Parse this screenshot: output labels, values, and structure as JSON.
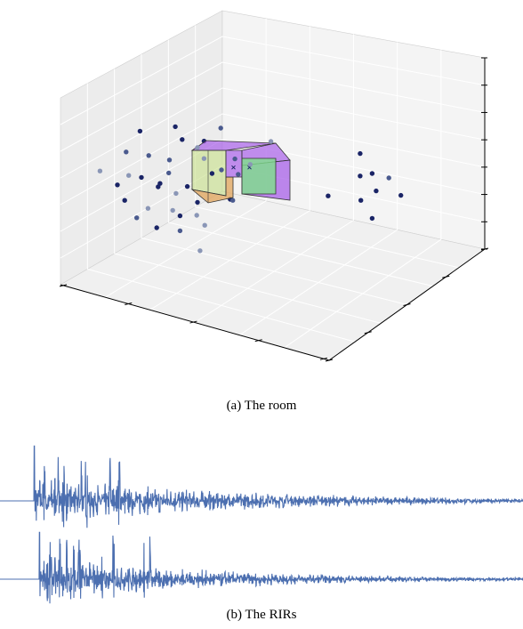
{
  "figure_a": {
    "caption": "(a) The room"
  },
  "figure_b": {
    "caption": "(b) The RIRs"
  },
  "colors": {
    "point_dark": "#1a2466",
    "point_mid": "#4a5a8e",
    "point_light": "#8a96b6",
    "rir_line": "#4c6fb0",
    "room_yellow": "#c8e08a",
    "room_orange": "#e2a45a",
    "room_purple": "#a860e8",
    "room_green": "#7ee08a"
  },
  "chart_data": [
    {
      "type": "scatter",
      "title": "",
      "description_kind": "3d-room-with-image-sources",
      "grid": true,
      "tick_labels": [],
      "points": [
        {
          "x": -2.6,
          "y": 0.3,
          "z": 1.6,
          "shade": "dark"
        },
        {
          "x": -1.7,
          "y": 0.2,
          "z": 1.8,
          "shade": "dark"
        },
        {
          "x": -0.6,
          "y": 0.4,
          "z": 1.7,
          "shade": "mid"
        },
        {
          "x": -1.6,
          "y": 0.6,
          "z": 1.2,
          "shade": "dark"
        },
        {
          "x": -1.2,
          "y": 0.5,
          "z": 0.9,
          "shade": "light"
        },
        {
          "x": 0.6,
          "y": 0.7,
          "z": 1.1,
          "shade": "light"
        },
        {
          "x": -3.0,
          "y": 0.6,
          "z": 0.7,
          "shade": "mid"
        },
        {
          "x": -2.4,
          "y": 0.4,
          "z": 0.6,
          "shade": "mid"
        },
        {
          "x": -1.9,
          "y": 0.5,
          "z": 0.4,
          "shade": "mid"
        },
        {
          "x": -0.3,
          "y": 0.7,
          "z": 0.4,
          "shade": "mid"
        },
        {
          "x": 0.1,
          "y": 0.6,
          "z": 0.2,
          "shade": "light"
        },
        {
          "x": -3.6,
          "y": 0.3,
          "z": 0.0,
          "shade": "light"
        },
        {
          "x": -2.9,
          "y": 0.4,
          "z": -0.2,
          "shade": "light"
        },
        {
          "x": -2.6,
          "y": 0.5,
          "z": -0.3,
          "shade": "dark"
        },
        {
          "x": -1.9,
          "y": 0.4,
          "z": -0.1,
          "shade": "mid"
        },
        {
          "x": -3.2,
          "y": 0.5,
          "z": -0.6,
          "shade": "dark"
        },
        {
          "x": -2.2,
          "y": 0.6,
          "z": -0.7,
          "shade": "dark"
        },
        {
          "x": -1.7,
          "y": 0.3,
          "z": -0.9,
          "shade": "light"
        },
        {
          "x": -3.0,
          "y": 0.4,
          "z": -1.2,
          "shade": "dark"
        },
        {
          "x": -2.4,
          "y": 0.3,
          "z": -1.5,
          "shade": "light"
        },
        {
          "x": -1.8,
          "y": 0.4,
          "z": -1.6,
          "shade": "light"
        },
        {
          "x": -1.2,
          "y": 0.5,
          "z": -1.3,
          "shade": "dark"
        },
        {
          "x": -0.4,
          "y": 0.6,
          "z": -1.2,
          "shade": "dark"
        },
        {
          "x": -2.7,
          "y": 0.4,
          "z": -1.9,
          "shade": "mid"
        },
        {
          "x": -1.6,
          "y": 0.3,
          "z": -1.8,
          "shade": "dark"
        },
        {
          "x": -1.2,
          "y": 0.4,
          "z": -1.8,
          "shade": "light"
        },
        {
          "x": -2.2,
          "y": 0.4,
          "z": -2.3,
          "shade": "dark"
        },
        {
          "x": -1.6,
          "y": 0.3,
          "z": -2.4,
          "shade": "mid"
        },
        {
          "x": -1.0,
          "y": 0.4,
          "z": -2.2,
          "shade": "light"
        },
        {
          "x": -1.1,
          "y": 0.3,
          "z": -3.2,
          "shade": "light"
        },
        {
          "x": 2.1,
          "y": 0.3,
          "z": -1.0,
          "shade": "dark"
        },
        {
          "x": 2.9,
          "y": 0.3,
          "z": 0.7,
          "shade": "dark"
        },
        {
          "x": 2.9,
          "y": 0.3,
          "z": -0.2,
          "shade": "dark"
        },
        {
          "x": 3.2,
          "y": 0.3,
          "z": -0.1,
          "shade": "dark"
        },
        {
          "x": 3.6,
          "y": 0.4,
          "z": -0.3,
          "shade": "mid"
        },
        {
          "x": 3.3,
          "y": 0.3,
          "z": -0.8,
          "shade": "dark"
        },
        {
          "x": 2.9,
          "y": 0.4,
          "z": -1.2,
          "shade": "dark"
        },
        {
          "x": 3.9,
          "y": 0.4,
          "z": -1.0,
          "shade": "dark"
        },
        {
          "x": 3.2,
          "y": 0.3,
          "z": -1.9,
          "shade": "dark"
        },
        {
          "x": -0.6,
          "y": 0.5,
          "z": 0.0,
          "shade": "mid"
        },
        {
          "x": -0.2,
          "y": 0.6,
          "z": -0.2,
          "shade": "mid"
        },
        {
          "x": -0.3,
          "y": 0.4,
          "z": -1.2,
          "shade": "mid"
        },
        {
          "x": -0.8,
          "y": 0.3,
          "z": -0.1,
          "shade": "dark"
        },
        {
          "x": -2.1,
          "y": 0.3,
          "z": -0.5,
          "shade": "dark"
        },
        {
          "x": -1.0,
          "y": 0.3,
          "z": 0.5,
          "shade": "light"
        },
        {
          "x": -1.4,
          "y": 0.2,
          "z": -0.6,
          "shade": "dark"
        },
        {
          "x": -1.0,
          "y": 0.3,
          "z": 1.2,
          "shade": "dark"
        }
      ],
      "markers": [
        {
          "x": -0.3,
          "y": 0.5,
          "z": 0.1
        },
        {
          "x": 0.1,
          "y": 0.5,
          "z": 0.1
        }
      ]
    },
    {
      "type": "line",
      "title": "",
      "description_kind": "room-impulse-responses",
      "series": [
        {
          "onset": 0.065,
          "peak": 0.95,
          "early_spikes": 10,
          "decay": 0.42
        },
        {
          "onset": 0.075,
          "peak": 0.85,
          "early_spikes": 11,
          "decay": 0.36
        }
      ]
    }
  ]
}
